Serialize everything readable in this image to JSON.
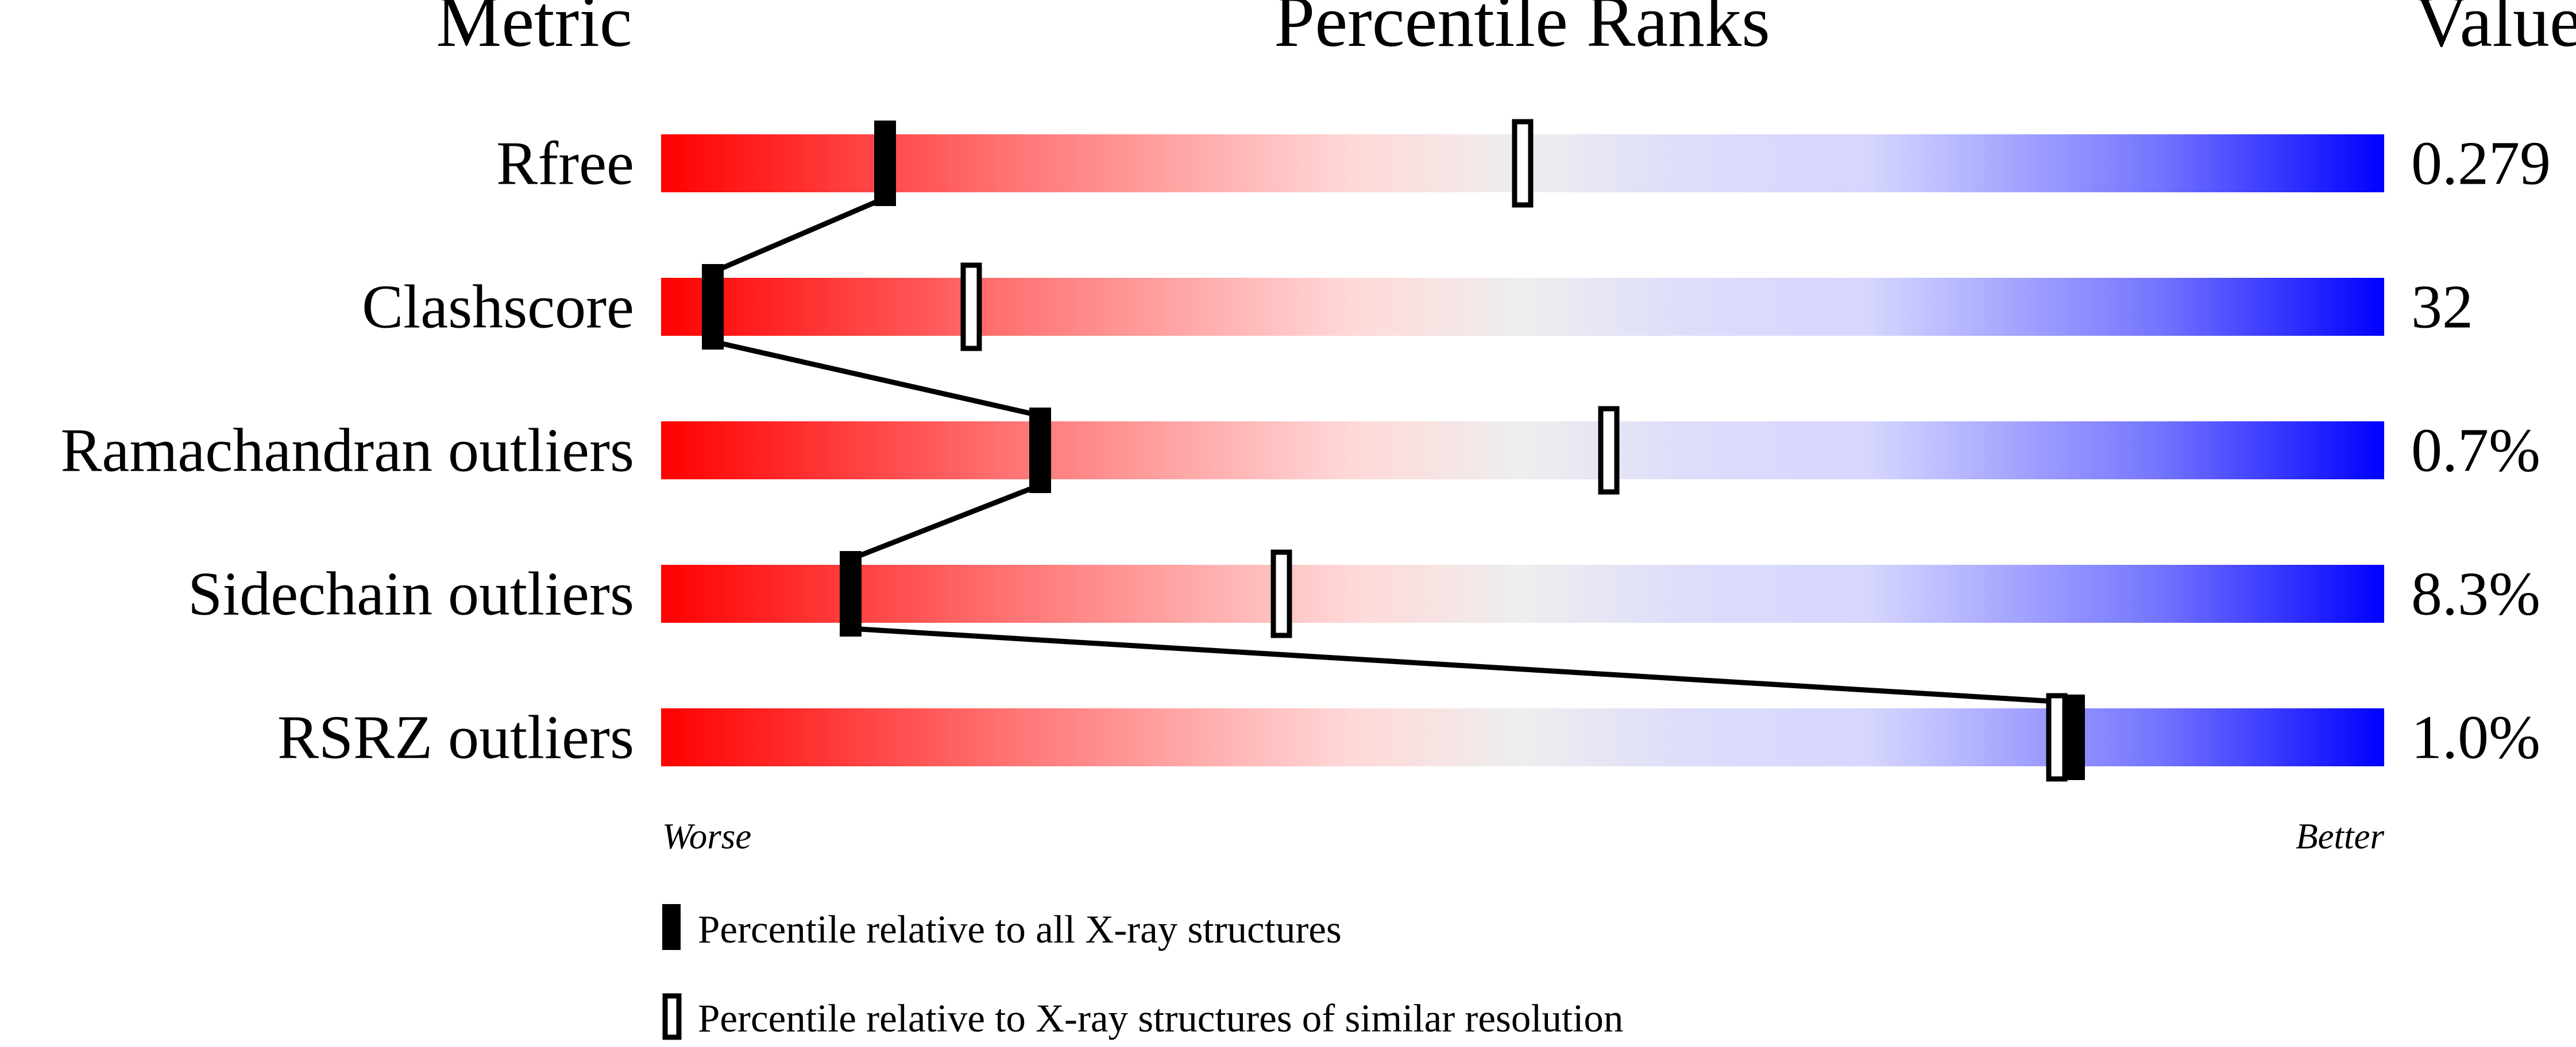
{
  "chart_data": {
    "type": "bar",
    "headers": {
      "metric": "Metric",
      "ranks": "Percentile Ranks",
      "value": "Value"
    },
    "xlim": [
      0,
      100
    ],
    "axis_labels": {
      "left": "Worse",
      "right": "Better"
    },
    "rows": [
      {
        "metric": "Rfree",
        "value": "0.279",
        "percentile_all": 13,
        "percentile_similar": 50
      },
      {
        "metric": "Clashscore",
        "value": "32",
        "percentile_all": 3,
        "percentile_similar": 18
      },
      {
        "metric": "Ramachandran outliers",
        "value": "0.7%",
        "percentile_all": 22,
        "percentile_similar": 55
      },
      {
        "metric": "Sidechain outliers",
        "value": "8.3%",
        "percentile_all": 11,
        "percentile_similar": 36
      },
      {
        "metric": "RSRZ outliers",
        "value": "1.0%",
        "percentile_all": 82,
        "percentile_similar": 81
      }
    ],
    "legend": [
      {
        "marker": "filled",
        "label": "Percentile relative to all X-ray structures"
      },
      {
        "marker": "open",
        "label": "Percentile relative to X-ray structures of similar resolution"
      }
    ],
    "gradient_colors": {
      "worse": "#ff0000",
      "middle": "#eeeeee",
      "better": "#0000ff"
    }
  }
}
